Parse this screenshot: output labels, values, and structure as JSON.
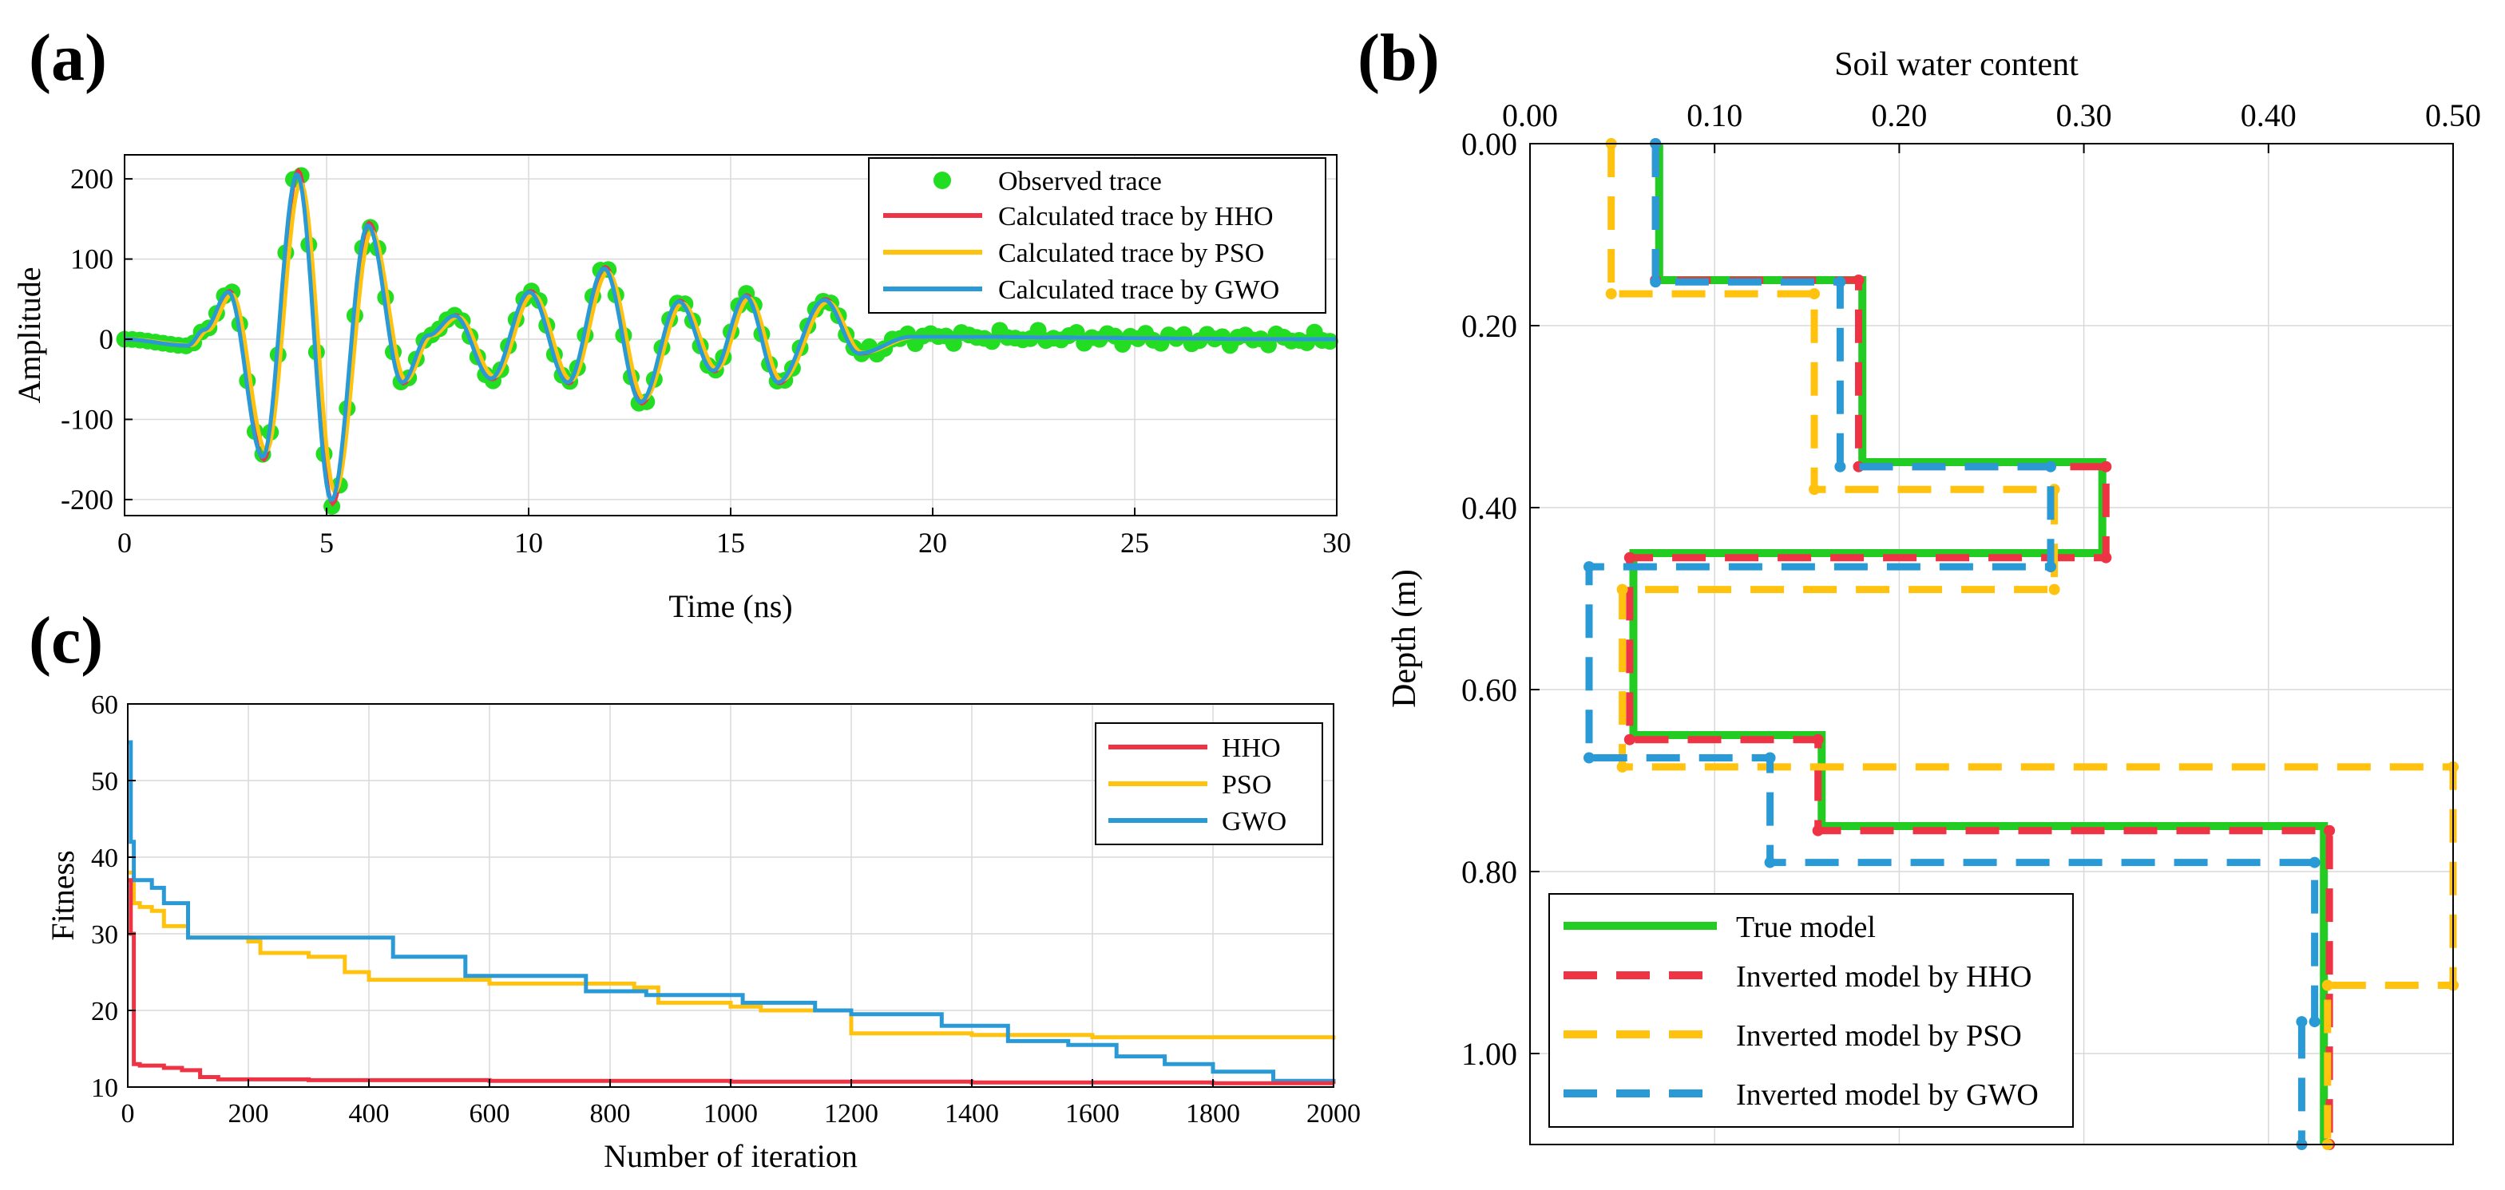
{
  "colors": {
    "observed": "#22dd22",
    "hho": "#ee3344",
    "pso": "#ffc20e",
    "gwo": "#2a9ad6",
    "true_model": "#22cc22",
    "axis": "#000000",
    "grid": "#d9d9d9"
  },
  "chart_data": [
    {
      "id": "a",
      "type": "line",
      "panel_label": "(a)",
      "xlabel": "Time (ns)",
      "ylabel": "Amplitude",
      "xlim": [
        0,
        30
      ],
      "ylim": [
        -220,
        230
      ],
      "xticks": [
        0,
        5,
        10,
        15,
        20,
        25,
        30
      ],
      "xtick_labels": [
        "0",
        "5",
        "10",
        "15",
        "20",
        "25",
        "30"
      ],
      "yticks": [
        -200,
        -100,
        0,
        100,
        200
      ],
      "ytick_labels": [
        "-200",
        "-100",
        "0",
        "100",
        "200"
      ],
      "grid": true,
      "legend_position": "top-right",
      "legend": [
        "Observed trace",
        "Calculated trace by HHO",
        "Calculated trace by PSO",
        "Calculated trace by GWO"
      ],
      "waveform_peaks": {
        "t": [
          0,
          1.6,
          2.0,
          2.6,
          3.45,
          4.3,
          5.15,
          6.05,
          6.9,
          7.55,
          8.2,
          9.1,
          10.05,
          11.0,
          11.9,
          12.8,
          13.75,
          14.6,
          15.4,
          16.2,
          17.35,
          18.2,
          19.5,
          30
        ],
        "y": [
          0,
          -8,
          12,
          60,
          -150,
          210,
          -205,
          145,
          -55,
          5,
          30,
          -50,
          60,
          -55,
          90,
          -80,
          48,
          -40,
          55,
          -55,
          50,
          -18,
          3,
          0
        ]
      },
      "series": [
        {
          "name": "Observed trace",
          "style": "markers"
        },
        {
          "name": "Calculated trace by HHO",
          "style": "line"
        },
        {
          "name": "Calculated trace by PSO",
          "style": "line"
        },
        {
          "name": "Calculated trace by GWO",
          "style": "line"
        }
      ]
    },
    {
      "id": "b",
      "type": "line",
      "panel_label": "(b)",
      "xlabel": "Soil water content",
      "ylabel": "Depth (m)",
      "xlim": [
        0,
        0.5
      ],
      "ylim": [
        1.1,
        0
      ],
      "xticks": [
        0,
        0.1,
        0.2,
        0.3,
        0.4,
        0.5
      ],
      "xtick_labels": [
        "0.00",
        "0.10",
        "0.20",
        "0.30",
        "0.40",
        "0.50"
      ],
      "yticks": [
        0,
        0.2,
        0.4,
        0.6,
        0.8,
        1.0
      ],
      "ytick_labels": [
        "0.00",
        "0.20",
        "0.40",
        "0.60",
        "0.80",
        "1.00"
      ],
      "grid": true,
      "legend_position": "bottom-left",
      "legend": [
        "True model",
        "Inverted model by HHO",
        "Inverted model by PSO",
        "Inverted model by GWO"
      ],
      "series": [
        {
          "name": "True model",
          "swc": [
            0.07,
            0.18,
            0.31,
            0.056,
            0.158,
            0.43
          ],
          "depth_breaks": [
            0,
            0.15,
            0.35,
            0.45,
            0.65,
            0.75,
            1.1
          ]
        },
        {
          "name": "Inverted model by HHO",
          "swc": [
            0.068,
            0.178,
            0.312,
            0.054,
            0.156,
            0.433
          ],
          "depth_breaks": [
            0,
            0.15,
            0.355,
            0.455,
            0.655,
            0.755,
            1.1
          ]
        },
        {
          "name": "Inverted model by PSO",
          "swc": [
            0.044,
            0.154,
            0.284,
            0.05,
            0.5,
            0.432
          ],
          "depth_breaks": [
            0,
            0.165,
            0.38,
            0.49,
            0.685,
            0.925,
            1.1
          ]
        },
        {
          "name": "Inverted model by GWO",
          "swc": [
            0.068,
            0.168,
            0.282,
            0.032,
            0.13,
            0.425,
            0.418
          ],
          "depth_breaks": [
            0,
            0.152,
            0.355,
            0.465,
            0.675,
            0.79,
            0.965,
            1.1
          ]
        }
      ]
    },
    {
      "id": "c",
      "type": "line",
      "panel_label": "(c)",
      "xlabel": "Number of iteration",
      "ylabel": "Fitness",
      "xlim": [
        0,
        2000
      ],
      "ylim": [
        10,
        60
      ],
      "xticks": [
        0,
        200,
        400,
        600,
        800,
        1000,
        1200,
        1400,
        1600,
        1800,
        2000
      ],
      "xtick_labels": [
        "0",
        "200",
        "400",
        "600",
        "800",
        "1000",
        "1200",
        "1400",
        "1600",
        "1800",
        "2000"
      ],
      "yticks": [
        10,
        20,
        30,
        40,
        50,
        60
      ],
      "ytick_labels": [
        "10",
        "20",
        "30",
        "40",
        "50",
        "60"
      ],
      "grid": true,
      "legend_position": "top-right",
      "legend": [
        "HHO",
        "PSO",
        "GWO"
      ],
      "series": [
        {
          "name": "HHO",
          "x": [
            0,
            5,
            10,
            20,
            60,
            90,
            120,
            150,
            300,
            600,
            1000,
            1400,
            1800,
            2000
          ],
          "y": [
            37,
            30,
            13,
            12.8,
            12.5,
            12.2,
            11.3,
            11.0,
            10.9,
            10.8,
            10.7,
            10.6,
            10.5,
            10.4
          ]
        },
        {
          "name": "PSO",
          "x": [
            0,
            10,
            20,
            40,
            60,
            100,
            200,
            220,
            300,
            360,
            400,
            600,
            840,
            880,
            1000,
            1050,
            1200,
            1400,
            1600,
            1800,
            2000
          ],
          "y": [
            38,
            34,
            33.5,
            33,
            31,
            29.5,
            29,
            27.5,
            27,
            25,
            24,
            23.5,
            23,
            21,
            20.5,
            20,
            17,
            16.8,
            16.5,
            16.5,
            16.2
          ]
        },
        {
          "name": "GWO",
          "x": [
            0,
            5,
            10,
            40,
            60,
            100,
            200,
            300,
            440,
            560,
            760,
            860,
            1020,
            1140,
            1200,
            1350,
            1460,
            1560,
            1640,
            1720,
            1800,
            1900,
            2000
          ],
          "y": [
            55,
            42,
            37,
            36,
            34,
            29.5,
            29.5,
            29.5,
            27,
            24.5,
            22.5,
            22,
            21,
            20,
            19.5,
            18,
            16,
            15.5,
            14,
            13,
            12,
            10.8,
            10.5
          ]
        }
      ]
    }
  ]
}
